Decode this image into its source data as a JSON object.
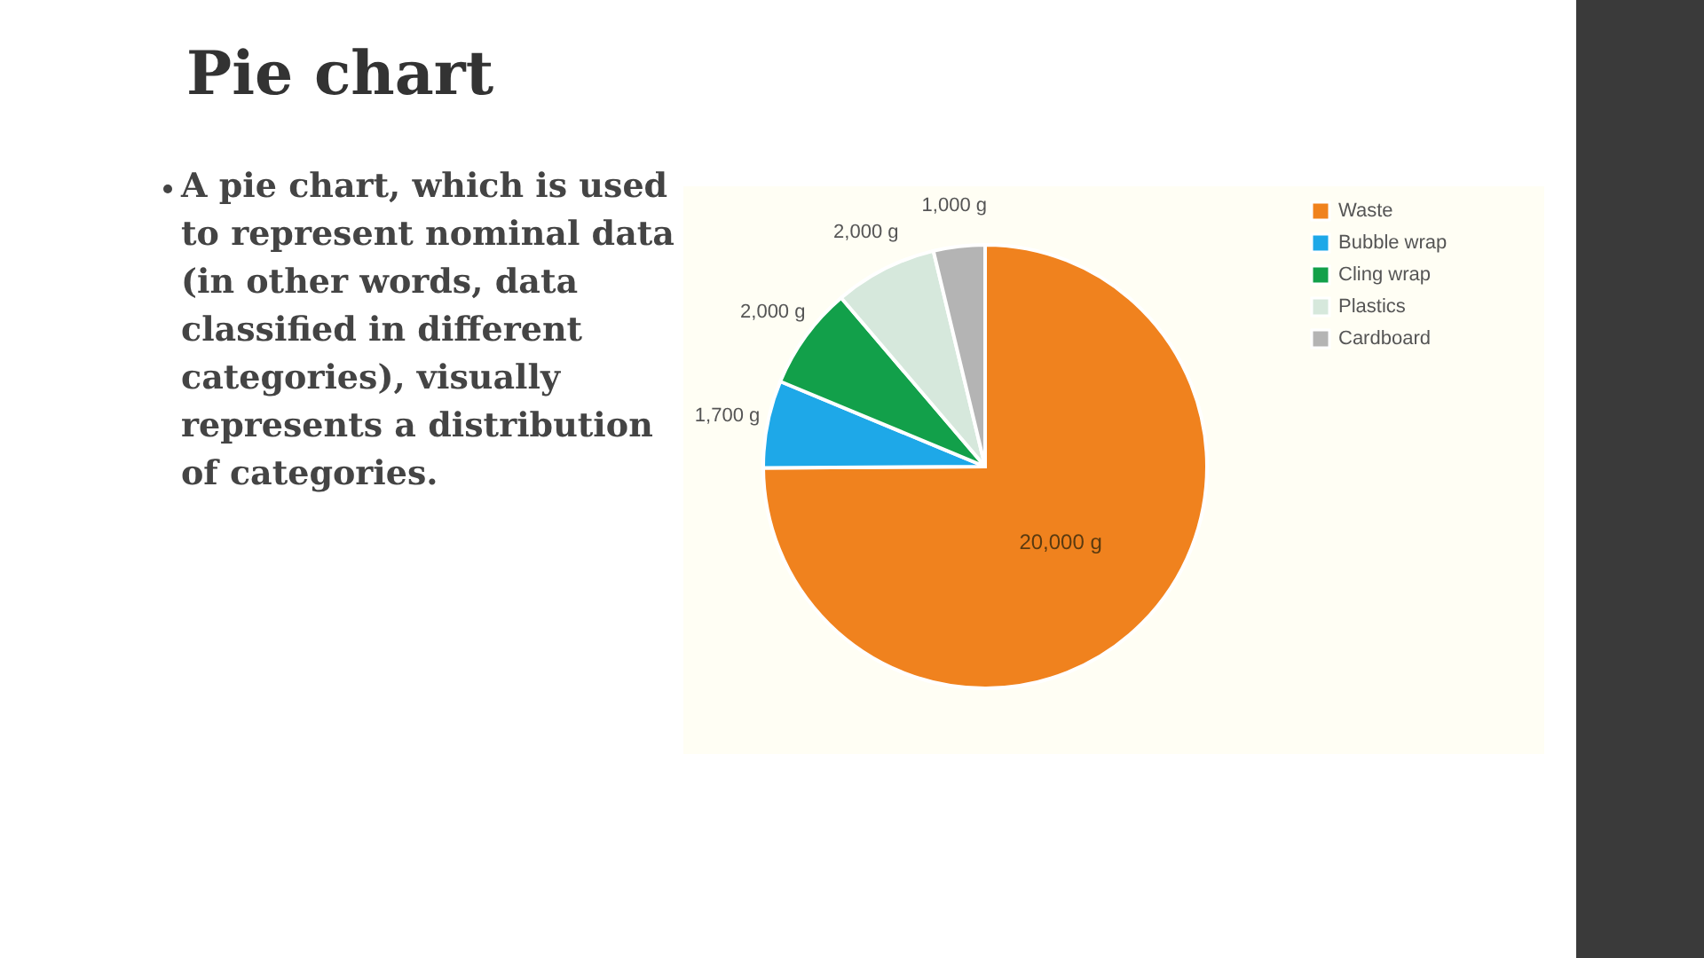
{
  "chart_data": {
    "type": "pie",
    "title": "Pie chart",
    "annotations": [
      "A pie chart, which is used to represent nominal data (in other words, data classified in different categories), visually represents a distribution of categories."
    ],
    "categories": [
      "Waste",
      "Bubble wrap",
      "Cling wrap",
      "Plastics",
      "Cardboard"
    ],
    "values": [
      20000,
      1700,
      2000,
      2000,
      1000
    ],
    "value_labels": [
      "20,000 g",
      "1,700 g",
      "2,000 g",
      "2,000 g",
      "1,000 g"
    ],
    "colors": [
      "#f0821e",
      "#1ea8e8",
      "#12a04a",
      "#d6e8dc",
      "#b4b4b4"
    ],
    "legend": "right"
  }
}
